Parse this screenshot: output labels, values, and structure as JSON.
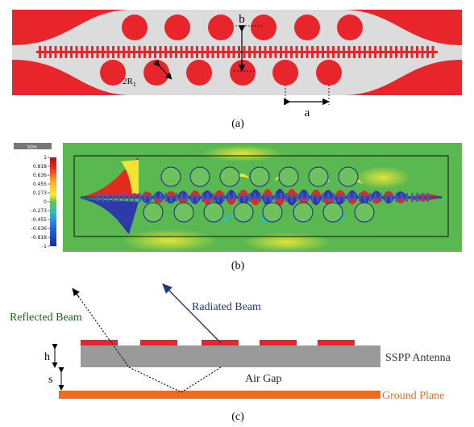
{
  "panel_a": {
    "label": "(a)",
    "dim_b": "b",
    "dim_a": "a",
    "dim_r_main": "2R",
    "dim_r_sub": "1"
  },
  "panel_b": {
    "label": "(b)",
    "colorbar": {
      "unit": "V/m",
      "ticks": [
        "1",
        "0.818",
        "0.636",
        "0.455",
        "0.273",
        "0",
        "-0.273",
        "-0.455",
        "-0.636",
        "-0.818",
        "-1"
      ]
    }
  },
  "panel_c": {
    "label": "(c)",
    "reflected_beam": "Reflected Beam",
    "radiated_beam": "Radiated Beam",
    "antenna": "SSPP Antenna",
    "air_gap": "Air Gap",
    "ground_plane": "Ground Plane",
    "dim_h": "h",
    "dim_s": "s"
  },
  "colors": {
    "metal_red": "#e8252a",
    "substrate_gray": "#e0e0e0",
    "antenna_gray": "#9a9a9a",
    "ground_orange": "#f06a1e",
    "beam_blue": "#223a7a",
    "field_green": "#59b850"
  }
}
